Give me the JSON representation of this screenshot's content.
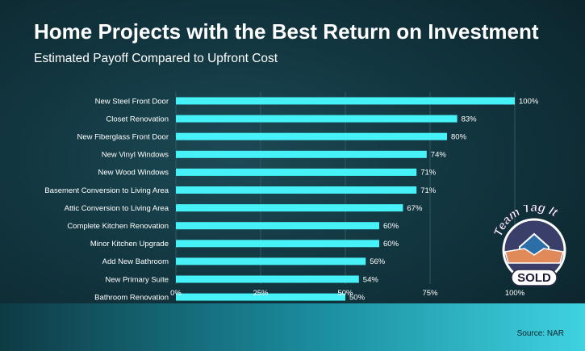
{
  "title": "Home Projects with the Best Return on Investment",
  "subtitle": "Estimated Payoff Compared to Upfront Cost",
  "source": "Source: NAR",
  "logo": {
    "text": "Team Tag It",
    "subtext": "SOLD"
  },
  "colors": {
    "bar": "#46f2f8",
    "text": "#ffffff",
    "grid": "#2f5a63"
  },
  "chart_data": {
    "type": "bar",
    "orientation": "horizontal",
    "categories": [
      "New Steel Front Door",
      "Closet Renovation",
      "New Fiberglass Front Door",
      "New Vinyl Windows",
      "New Wood Windows",
      "Basement Conversion to Living Area",
      "Attic Conversion to Living Area",
      "Complete Kitchen Renovation",
      "Minor Kitchen Upgrade",
      "Add New Bathroom",
      "New Primary Suite",
      "Bathroom Renovation"
    ],
    "values": [
      100,
      83,
      80,
      74,
      71,
      71,
      67,
      60,
      60,
      56,
      54,
      50
    ],
    "data_labels": [
      "100%",
      "83%",
      "80%",
      "74%",
      "71%",
      "71%",
      "67%",
      "60%",
      "60%",
      "56%",
      "54%",
      "50%"
    ],
    "xlim": [
      0,
      100
    ],
    "xticks": [
      0,
      25,
      50,
      75,
      100
    ],
    "xtick_labels": [
      "0%",
      "25%",
      "50%",
      "75%",
      "100%"
    ],
    "grid": true
  }
}
